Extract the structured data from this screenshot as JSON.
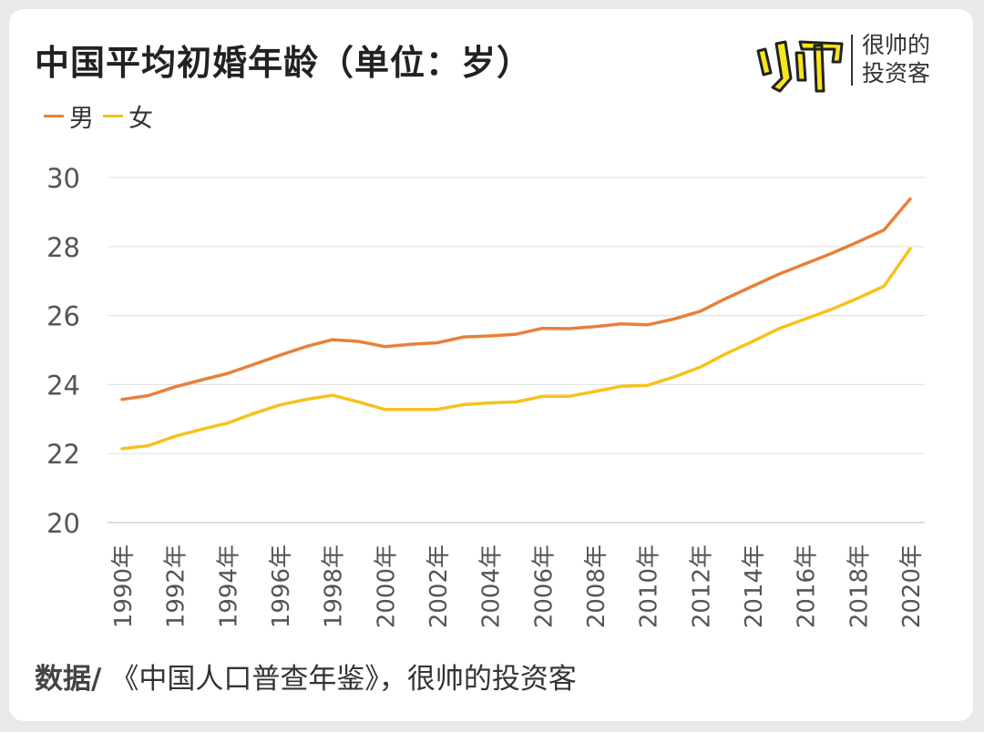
{
  "header": {
    "title": "中国平均初婚年龄（单位：岁）",
    "brand_line1": "很帅的",
    "brand_line2": "投资客"
  },
  "source": {
    "label": "数据/",
    "text": "《中国人口普查年鉴》，很帅的投资客"
  },
  "chart_data": {
    "type": "line",
    "title": "中国平均初婚年龄（单位：岁）",
    "x": [
      1990,
      1991,
      1992,
      1993,
      1994,
      1995,
      1996,
      1997,
      1998,
      1999,
      2000,
      2001,
      2002,
      2003,
      2004,
      2005,
      2006,
      2007,
      2008,
      2009,
      2010,
      2011,
      2012,
      2013,
      2014,
      2015,
      2016,
      2017,
      2018,
      2019,
      2020
    ],
    "x_tick_labels": [
      "1990年",
      "1992年",
      "1994年",
      "1996年",
      "1998年",
      "2000年",
      "2002年",
      "2004年",
      "2006年",
      "2008年",
      "2010年",
      "2012年",
      "2014年",
      "2016年",
      "2018年",
      "2020年"
    ],
    "y_ticks": [
      20,
      22,
      24,
      26,
      28,
      30
    ],
    "ylim": [
      20,
      30
    ],
    "grid": true,
    "legend_position": "top-left",
    "series": [
      {
        "name": "男",
        "color": "#E8803A",
        "values": [
          23.57,
          23.68,
          23.93,
          24.13,
          24.32,
          24.58,
          24.85,
          25.1,
          25.3,
          25.25,
          25.1,
          25.17,
          25.21,
          25.38,
          25.41,
          25.46,
          25.63,
          25.62,
          25.68,
          25.76,
          25.73,
          25.9,
          26.12,
          26.5,
          26.85,
          27.2,
          27.5,
          27.8,
          28.13,
          28.48,
          29.38
        ]
      },
      {
        "name": "女",
        "color": "#F6C21B",
        "values": [
          22.14,
          22.23,
          22.5,
          22.7,
          22.88,
          23.16,
          23.41,
          23.57,
          23.69,
          23.5,
          23.28,
          23.28,
          23.28,
          23.42,
          23.47,
          23.5,
          23.66,
          23.66,
          23.8,
          23.95,
          23.98,
          24.22,
          24.5,
          24.9,
          25.25,
          25.62,
          25.9,
          26.18,
          26.5,
          26.85,
          27.94
        ]
      }
    ]
  }
}
